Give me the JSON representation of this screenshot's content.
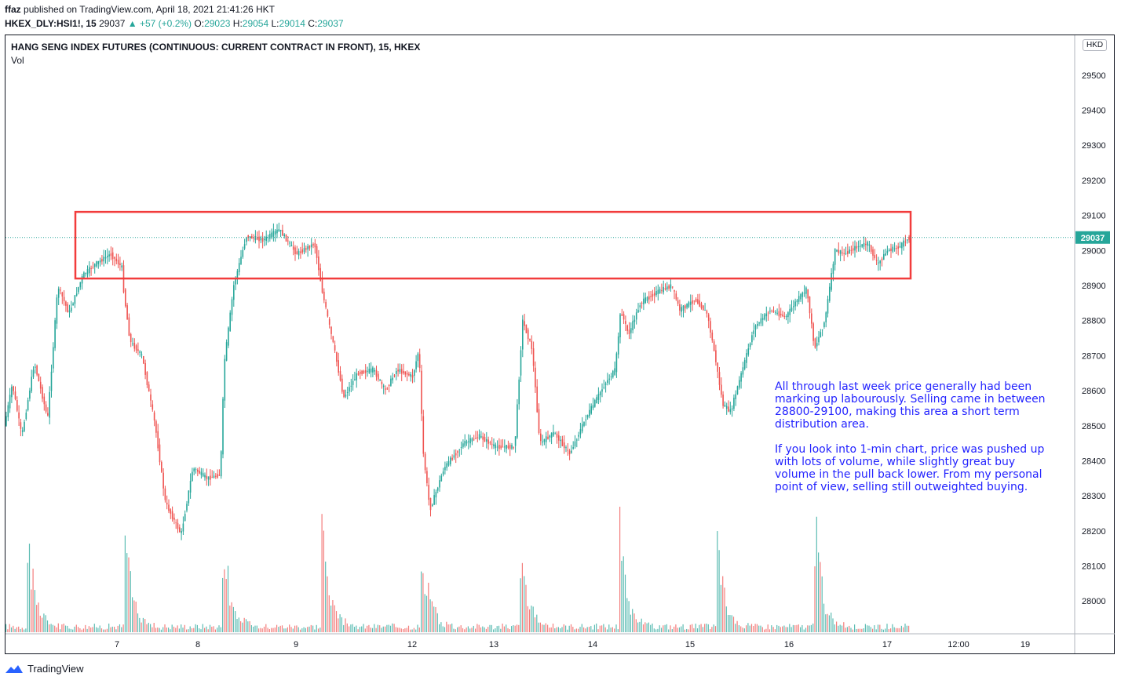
{
  "header": {
    "author": "ffaz",
    "published": "published on TradingView.com, April 18, 2021 21:41:26 HKT"
  },
  "quote": {
    "symbol": "HKEX_DLY:HSI1!, 15",
    "last": "29037",
    "change": "▲ +57 (+0.2%)",
    "o_label": "O:",
    "o": "29023",
    "h_label": "H:",
    "h": "29054",
    "l_label": "L:",
    "l": "29014",
    "c_label": "C:",
    "c": "29037"
  },
  "legend": {
    "title": "HANG SENG INDEX FUTURES (CONTINUOUS: CURRENT CONTRACT IN FRONT), 15, HKEX",
    "volume": "Vol"
  },
  "currency": "HKD",
  "annotation": {
    "p1": "All through last week price generally had been marking up labourously. Selling came in between 28800-29100, making this area a short term distribution area.",
    "p2": "If you look into 1-min chart, price was pushed up with lots of volume, while slightly great buy volume in the pull back lower. From my personal point of view, selling still outweighted buying."
  },
  "footer": {
    "brand": "TradingView"
  },
  "colors": {
    "up": "#26a69a",
    "down": "#ef5350",
    "box": "#f23c3c",
    "note": "#2323ff",
    "last_badge": "#26a69a"
  },
  "chart_data": {
    "type": "candlestick",
    "ylim": [
      27920,
      29560
    ],
    "yticks": [
      28000,
      28100,
      28200,
      28300,
      28400,
      28500,
      28600,
      28700,
      28800,
      28900,
      29000,
      29100,
      29200,
      29300,
      29400,
      29500
    ],
    "xticks": [
      "7",
      "8",
      "9",
      "12",
      "13",
      "14",
      "15",
      "16",
      "17",
      "12:00",
      "19"
    ],
    "last_price": "29037",
    "path": [
      [
        0,
        28500
      ],
      [
        10,
        28620
      ],
      [
        22,
        28470
      ],
      [
        38,
        28680
      ],
      [
        55,
        28520
      ],
      [
        68,
        28900
      ],
      [
        82,
        28820
      ],
      [
        100,
        28930
      ],
      [
        115,
        28960
      ],
      [
        135,
        28990
      ],
      [
        150,
        28950
      ],
      [
        152,
        28880
      ],
      [
        160,
        28740
      ],
      [
        175,
        28700
      ],
      [
        192,
        28500
      ],
      [
        205,
        28280
      ],
      [
        225,
        28190
      ],
      [
        240,
        28380
      ],
      [
        258,
        28350
      ],
      [
        275,
        28360
      ],
      [
        280,
        28680
      ],
      [
        292,
        28900
      ],
      [
        308,
        29040
      ],
      [
        330,
        29030
      ],
      [
        350,
        29060
      ],
      [
        372,
        28990
      ],
      [
        395,
        29020
      ],
      [
        405,
        28880
      ],
      [
        420,
        28720
      ],
      [
        432,
        28580
      ],
      [
        450,
        28650
      ],
      [
        470,
        28660
      ],
      [
        485,
        28600
      ],
      [
        500,
        28660
      ],
      [
        520,
        28640
      ],
      [
        528,
        28720
      ],
      [
        533,
        28430
      ],
      [
        542,
        28260
      ],
      [
        560,
        28380
      ],
      [
        585,
        28450
      ],
      [
        605,
        28470
      ],
      [
        625,
        28440
      ],
      [
        650,
        28440
      ],
      [
        660,
        28800
      ],
      [
        672,
        28720
      ],
      [
        682,
        28450
      ],
      [
        700,
        28480
      ],
      [
        720,
        28420
      ],
      [
        740,
        28520
      ],
      [
        765,
        28620
      ],
      [
        778,
        28660
      ],
      [
        785,
        28830
      ],
      [
        795,
        28760
      ],
      [
        810,
        28850
      ],
      [
        830,
        28880
      ],
      [
        850,
        28900
      ],
      [
        860,
        28830
      ],
      [
        880,
        28860
      ],
      [
        895,
        28820
      ],
      [
        905,
        28700
      ],
      [
        915,
        28560
      ],
      [
        925,
        28540
      ],
      [
        940,
        28660
      ],
      [
        955,
        28780
      ],
      [
        975,
        28830
      ],
      [
        995,
        28810
      ],
      [
        1010,
        28860
      ],
      [
        1022,
        28890
      ],
      [
        1032,
        28720
      ],
      [
        1045,
        28800
      ],
      [
        1058,
        29000
      ],
      [
        1070,
        28990
      ],
      [
        1085,
        29010
      ],
      [
        1100,
        29020
      ],
      [
        1112,
        28960
      ],
      [
        1125,
        29000
      ],
      [
        1140,
        29010
      ],
      [
        1152,
        29037
      ]
    ],
    "volume": {
      "spikes": [
        {
          "d": 28,
          "v": 1.0
        },
        {
          "d": 153,
          "v": 0.92
        },
        {
          "d": 278,
          "v": 0.93
        },
        {
          "d": 404,
          "v": 1.0
        },
        {
          "d": 530,
          "v": 0.95
        },
        {
          "d": 656,
          "v": 0.8
        },
        {
          "d": 782,
          "v": 1.0
        },
        {
          "d": 906,
          "v": 1.0
        },
        {
          "d": 1032,
          "v": 1.0
        }
      ]
    },
    "highlight_zone": {
      "from_price": 28920,
      "to_price": 29110,
      "from_day": 7,
      "to_day": 17
    }
  }
}
